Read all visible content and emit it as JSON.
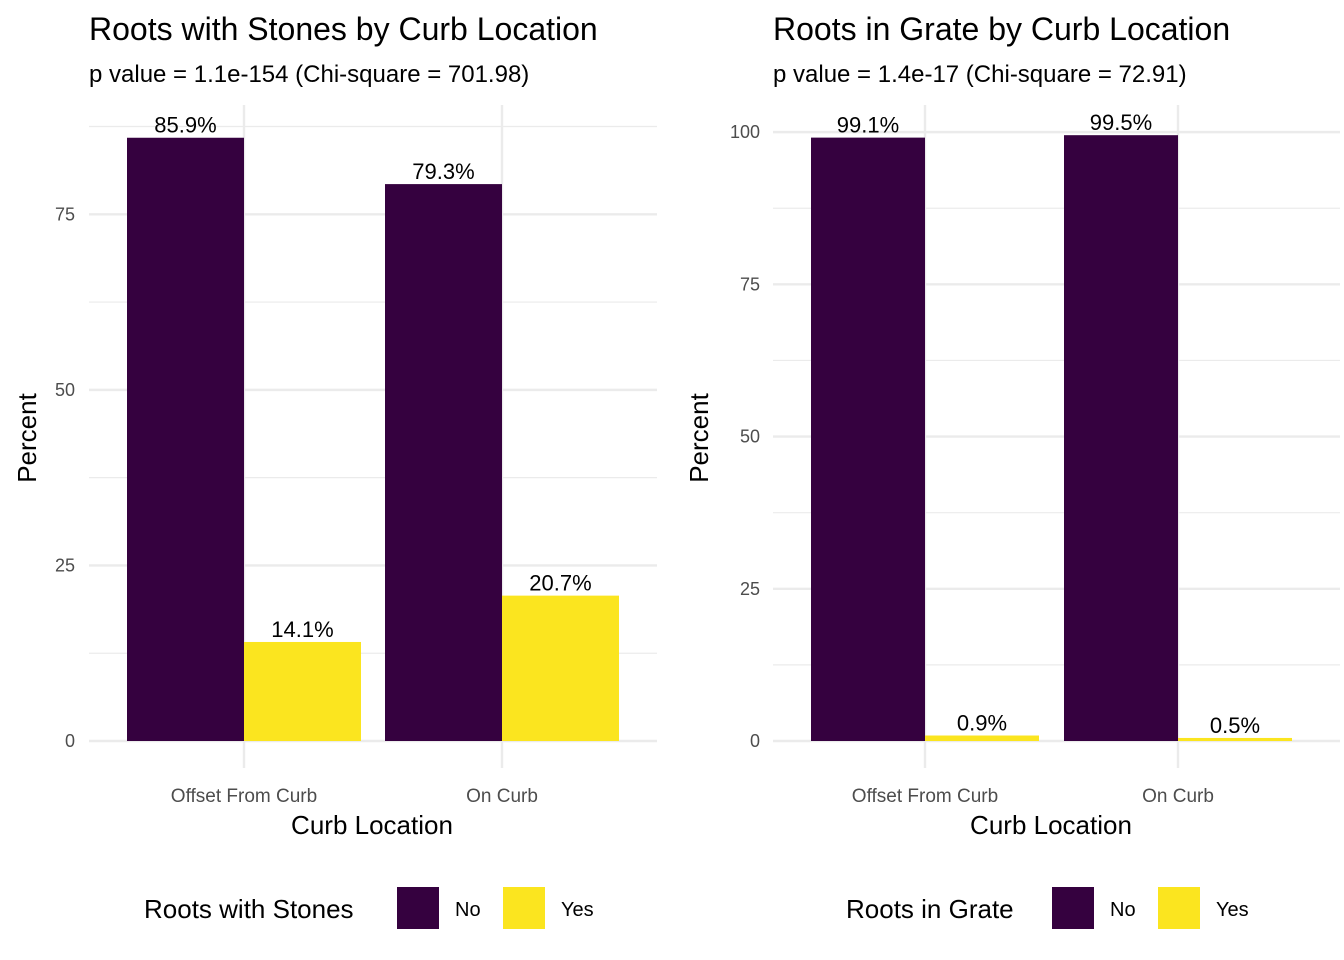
{
  "chart_data": [
    {
      "type": "bar",
      "title": "Roots with Stones by Curb Location",
      "subtitle": "p value = 1.1e-154 (Chi-square = 701.98)",
      "xlabel": "Curb Location",
      "ylabel": "Percent",
      "categories": [
        "Offset From Curb",
        "On Curb"
      ],
      "series": [
        {
          "name": "No",
          "color": "#35013f",
          "values": [
            85.9,
            79.3
          ],
          "labels": [
            "85.9%",
            "79.3%"
          ]
        },
        {
          "name": "Yes",
          "color": "#fbe51f",
          "values": [
            14.1,
            20.7
          ],
          "labels": [
            "14.1%",
            "20.7%"
          ]
        }
      ],
      "ylim": [
        0,
        88
      ],
      "yticks": [
        0,
        25,
        50,
        75
      ],
      "ytick_labels": [
        "0",
        "25",
        "50",
        "75"
      ],
      "grid": true,
      "legend": {
        "title": "Roots with Stones",
        "position": "bottom"
      }
    },
    {
      "type": "bar",
      "title": "Roots in Grate by Curb Location",
      "subtitle": "p value = 1.4e-17 (Chi-square = 72.91)",
      "xlabel": "Curb Location",
      "ylabel": "Percent",
      "categories": [
        "Offset From Curb",
        "On Curb"
      ],
      "series": [
        {
          "name": "No",
          "color": "#35013f",
          "values": [
            99.1,
            99.5
          ],
          "labels": [
            "99.1%",
            "99.5%"
          ]
        },
        {
          "name": "Yes",
          "color": "#fbe51f",
          "values": [
            0.9,
            0.5
          ],
          "labels": [
            "0.9%",
            "0.5%"
          ]
        }
      ],
      "ylim": [
        0,
        101.5
      ],
      "yticks": [
        0,
        25,
        50,
        75,
        100
      ],
      "ytick_labels": [
        "0",
        "25",
        "50",
        "75",
        "100"
      ],
      "grid": true,
      "legend": {
        "title": "Roots in Grate",
        "position": "bottom"
      }
    }
  ]
}
